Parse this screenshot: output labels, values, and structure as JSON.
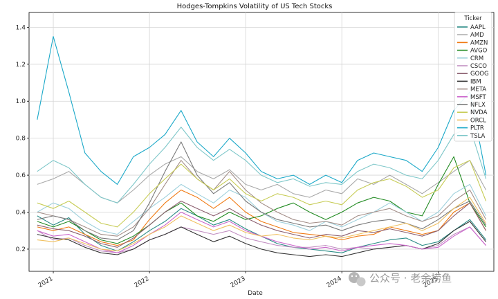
{
  "chart_data": {
    "type": "line",
    "title": "Hodges-Tompkins Volatility of US Tech Stocks",
    "xlabel": "Date",
    "ylabel": "",
    "x_ticks": [
      "2021",
      "2022",
      "2023",
      "2024",
      "2025"
    ],
    "y_ticks": [
      "0.2",
      "0.4",
      "0.6",
      "0.8",
      "1.0",
      "1.2",
      "1.4"
    ],
    "xlim": [
      "2020-10-01",
      "2025-07-31"
    ],
    "ylim": [
      0.08,
      1.48
    ],
    "grid": true,
    "legend_title": "Ticker",
    "legend_position": "top-right",
    "x_dates": [
      "2020-11-01",
      "2021-01-01",
      "2021-03-01",
      "2021-05-01",
      "2021-07-01",
      "2021-09-01",
      "2021-11-01",
      "2022-01-01",
      "2022-03-01",
      "2022-05-01",
      "2022-07-01",
      "2022-09-01",
      "2022-11-01",
      "2023-01-01",
      "2023-03-01",
      "2023-05-01",
      "2023-07-01",
      "2023-09-01",
      "2023-11-01",
      "2024-01-01",
      "2024-03-01",
      "2024-05-01",
      "2024-07-01",
      "2024-09-01",
      "2024-11-01",
      "2025-01-01",
      "2025-03-01",
      "2025-05-01",
      "2025-07-01"
    ],
    "series": [
      {
        "name": "AAPL",
        "color": "#2a8c86",
        "values": [
          0.38,
          0.33,
          0.37,
          0.28,
          0.22,
          0.19,
          0.24,
          0.3,
          0.35,
          0.42,
          0.38,
          0.33,
          0.36,
          0.31,
          0.27,
          0.23,
          0.21,
          0.2,
          0.19,
          0.18,
          0.21,
          0.23,
          0.25,
          0.26,
          0.22,
          0.24,
          0.3,
          0.36,
          0.25
        ]
      },
      {
        "name": "AMD",
        "color": "#a8a8a8",
        "values": [
          0.55,
          0.58,
          0.62,
          0.55,
          0.48,
          0.45,
          0.52,
          0.6,
          0.66,
          0.7,
          0.62,
          0.58,
          0.63,
          0.55,
          0.52,
          0.55,
          0.5,
          0.48,
          0.52,
          0.5,
          0.58,
          0.55,
          0.6,
          0.55,
          0.5,
          0.56,
          0.62,
          0.68,
          0.52
        ]
      },
      {
        "name": "AMZN",
        "color": "#f07a12",
        "values": [
          0.32,
          0.3,
          0.32,
          0.28,
          0.24,
          0.22,
          0.25,
          0.36,
          0.45,
          0.52,
          0.48,
          0.42,
          0.48,
          0.4,
          0.35,
          0.32,
          0.29,
          0.28,
          0.27,
          0.25,
          0.27,
          0.28,
          0.32,
          0.3,
          0.28,
          0.3,
          0.4,
          0.45,
          0.3
        ]
      },
      {
        "name": "AVGO",
        "color": "#228b22",
        "values": [
          0.35,
          0.32,
          0.35,
          0.3,
          0.25,
          0.23,
          0.27,
          0.33,
          0.4,
          0.45,
          0.38,
          0.35,
          0.4,
          0.36,
          0.38,
          0.42,
          0.45,
          0.4,
          0.36,
          0.4,
          0.45,
          0.48,
          0.46,
          0.4,
          0.38,
          0.55,
          0.7,
          0.45,
          0.32
        ]
      },
      {
        "name": "CRM",
        "color": "#9ed0dc",
        "values": [
          0.4,
          0.45,
          0.42,
          0.35,
          0.3,
          0.28,
          0.35,
          0.42,
          0.48,
          0.55,
          0.5,
          0.45,
          0.52,
          0.48,
          0.4,
          0.35,
          0.33,
          0.3,
          0.35,
          0.32,
          0.36,
          0.4,
          0.45,
          0.4,
          0.35,
          0.4,
          0.5,
          0.55,
          0.38
        ]
      },
      {
        "name": "CSCO",
        "color": "#c28fc2",
        "values": [
          0.3,
          0.25,
          0.26,
          0.22,
          0.19,
          0.18,
          0.2,
          0.25,
          0.28,
          0.32,
          0.3,
          0.28,
          0.3,
          0.26,
          0.24,
          0.22,
          0.21,
          0.21,
          0.22,
          0.2,
          0.21,
          0.2,
          0.21,
          0.22,
          0.2,
          0.22,
          0.28,
          0.32,
          0.22
        ]
      },
      {
        "name": "GOOG",
        "color": "#8c6070",
        "values": [
          0.33,
          0.31,
          0.3,
          0.27,
          0.23,
          0.21,
          0.26,
          0.33,
          0.4,
          0.46,
          0.42,
          0.38,
          0.42,
          0.37,
          0.33,
          0.3,
          0.28,
          0.26,
          0.28,
          0.27,
          0.3,
          0.29,
          0.31,
          0.29,
          0.27,
          0.3,
          0.38,
          0.45,
          0.3
        ]
      },
      {
        "name": "IBM",
        "color": "#333333",
        "values": [
          0.28,
          0.26,
          0.25,
          0.21,
          0.18,
          0.17,
          0.2,
          0.25,
          0.28,
          0.32,
          0.28,
          0.24,
          0.27,
          0.23,
          0.2,
          0.18,
          0.17,
          0.16,
          0.17,
          0.16,
          0.18,
          0.2,
          0.21,
          0.22,
          0.2,
          0.23,
          0.3,
          0.35,
          0.24
        ]
      },
      {
        "name": "META",
        "color": "#a38e88",
        "values": [
          0.4,
          0.38,
          0.36,
          0.32,
          0.28,
          0.27,
          0.32,
          0.42,
          0.55,
          0.68,
          0.58,
          0.52,
          0.62,
          0.52,
          0.45,
          0.4,
          0.36,
          0.34,
          0.35,
          0.33,
          0.38,
          0.4,
          0.42,
          0.38,
          0.35,
          0.38,
          0.46,
          0.52,
          0.36
        ]
      },
      {
        "name": "MSFT",
        "color": "#cc66cc",
        "values": [
          0.3,
          0.27,
          0.28,
          0.24,
          0.2,
          0.18,
          0.22,
          0.28,
          0.33,
          0.4,
          0.36,
          0.32,
          0.35,
          0.3,
          0.27,
          0.24,
          0.22,
          0.2,
          0.21,
          0.19,
          0.21,
          0.22,
          0.23,
          0.22,
          0.2,
          0.21,
          0.27,
          0.32,
          0.22
        ]
      },
      {
        "name": "NFLX",
        "color": "#7a7a7a",
        "values": [
          0.36,
          0.38,
          0.36,
          0.3,
          0.26,
          0.25,
          0.3,
          0.45,
          0.62,
          0.78,
          0.6,
          0.5,
          0.56,
          0.46,
          0.4,
          0.36,
          0.34,
          0.32,
          0.33,
          0.3,
          0.33,
          0.35,
          0.36,
          0.34,
          0.31,
          0.36,
          0.42,
          0.46,
          0.33
        ]
      },
      {
        "name": "NVDA",
        "color": "#c7cc55",
        "values": [
          0.45,
          0.42,
          0.46,
          0.4,
          0.34,
          0.32,
          0.4,
          0.5,
          0.58,
          0.66,
          0.58,
          0.52,
          0.58,
          0.5,
          0.46,
          0.5,
          0.48,
          0.44,
          0.46,
          0.44,
          0.52,
          0.56,
          0.58,
          0.54,
          0.48,
          0.52,
          0.64,
          0.68,
          0.46
        ]
      },
      {
        "name": "ORCL",
        "color": "#f0c060",
        "values": [
          0.25,
          0.24,
          0.26,
          0.23,
          0.2,
          0.19,
          0.23,
          0.28,
          0.32,
          0.38,
          0.34,
          0.3,
          0.33,
          0.29,
          0.27,
          0.28,
          0.26,
          0.25,
          0.27,
          0.26,
          0.28,
          0.3,
          0.32,
          0.34,
          0.3,
          0.34,
          0.42,
          0.48,
          0.34
        ]
      },
      {
        "name": "PLTR",
        "color": "#1aa8c8",
        "values": [
          0.9,
          1.35,
          1.05,
          0.72,
          0.62,
          0.55,
          0.7,
          0.75,
          0.82,
          0.95,
          0.78,
          0.7,
          0.8,
          0.72,
          0.62,
          0.58,
          0.6,
          0.55,
          0.6,
          0.56,
          0.68,
          0.72,
          0.7,
          0.68,
          0.62,
          0.75,
          0.95,
          1.05,
          0.6
        ]
      },
      {
        "name": "TSLA",
        "color": "#7ec7c9",
        "values": [
          0.62,
          0.68,
          0.64,
          0.55,
          0.48,
          0.45,
          0.55,
          0.66,
          0.75,
          0.86,
          0.75,
          0.68,
          0.74,
          0.68,
          0.6,
          0.56,
          0.58,
          0.54,
          0.56,
          0.55,
          0.62,
          0.66,
          0.64,
          0.6,
          0.58,
          0.68,
          0.82,
          0.86,
          0.58
        ]
      }
    ]
  },
  "watermark": {
    "text": "公众号 · 老余捞鱼",
    "icon": "wechat-icon"
  }
}
